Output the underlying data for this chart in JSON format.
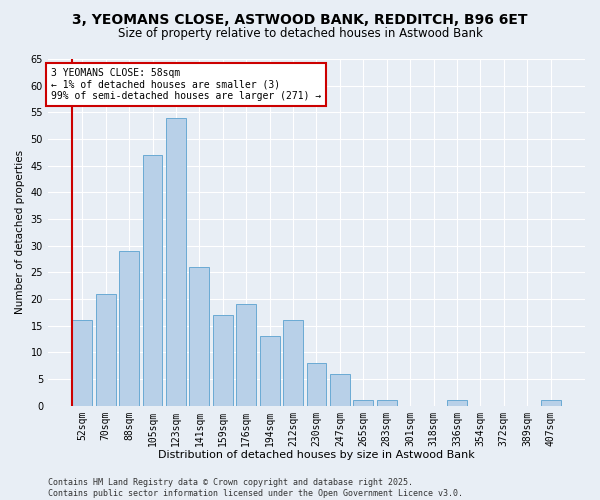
{
  "title1": "3, YEOMANS CLOSE, ASTWOOD BANK, REDDITCH, B96 6ET",
  "title2": "Size of property relative to detached houses in Astwood Bank",
  "xlabel": "Distribution of detached houses by size in Astwood Bank",
  "ylabel": "Number of detached properties",
  "categories": [
    "52sqm",
    "70sqm",
    "88sqm",
    "105sqm",
    "123sqm",
    "141sqm",
    "159sqm",
    "176sqm",
    "194sqm",
    "212sqm",
    "230sqm",
    "247sqm",
    "265sqm",
    "283sqm",
    "301sqm",
    "318sqm",
    "336sqm",
    "354sqm",
    "372sqm",
    "389sqm",
    "407sqm"
  ],
  "values": [
    16,
    21,
    29,
    47,
    54,
    26,
    17,
    19,
    13,
    16,
    8,
    6,
    1,
    1,
    0,
    0,
    1,
    0,
    0,
    0,
    1
  ],
  "bar_color": "#b8d0e8",
  "bar_edge_color": "#6aaad4",
  "highlight_bar_index": 0,
  "annotation_text": "3 YEOMANS CLOSE: 58sqm\n← 1% of detached houses are smaller (3)\n99% of semi-detached houses are larger (271) →",
  "annotation_box_color": "#ffffff",
  "annotation_border_color": "#cc0000",
  "red_line_color": "#cc0000",
  "ylim": [
    0,
    65
  ],
  "yticks": [
    0,
    5,
    10,
    15,
    20,
    25,
    30,
    35,
    40,
    45,
    50,
    55,
    60,
    65
  ],
  "background_color": "#e8eef5",
  "plot_bg_color": "#e8eef5",
  "footer_text": "Contains HM Land Registry data © Crown copyright and database right 2025.\nContains public sector information licensed under the Open Government Licence v3.0.",
  "title1_fontsize": 10,
  "title2_fontsize": 8.5,
  "xlabel_fontsize": 8,
  "ylabel_fontsize": 7.5,
  "tick_fontsize": 7,
  "annotation_fontsize": 7,
  "footer_fontsize": 6
}
